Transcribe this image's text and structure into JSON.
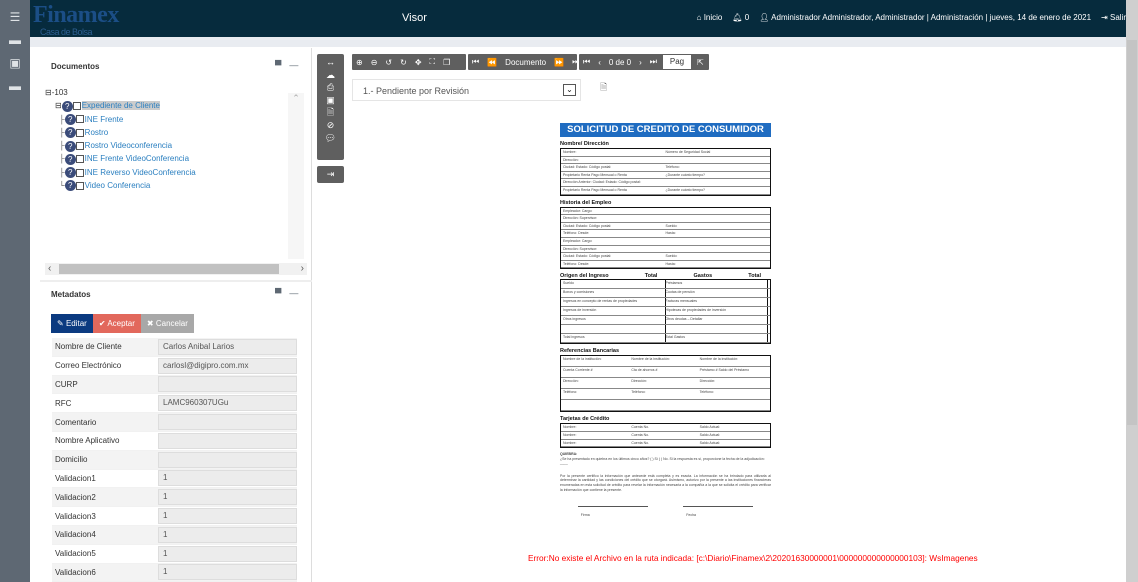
{
  "rail": {
    "items": [
      "menu-icon",
      "drawer-icon",
      "briefcase-icon",
      "inbox-icon"
    ]
  },
  "header": {
    "logo": "Finamex",
    "logo_sub": "Casa de Bolsa",
    "title": "Visor",
    "inicio": "Inicio",
    "notifications": "0",
    "user_info": "Administrador Administrador, Administrador | Administración | jueves, 14 de enero de 2021",
    "logout": "Salir"
  },
  "documents": {
    "title": "Documentos",
    "root": "103",
    "folder": "Expediente de Cliente",
    "items": [
      "INE Frente",
      "Rostro",
      "Rostro Videoconferencia",
      "INE Frente VideoConferencia",
      "INE Reverso VideoConferencia",
      "Video Conferencia"
    ]
  },
  "metadata": {
    "title": "Metadatos",
    "edit": "Editar",
    "accept": "Aceptar",
    "cancel": "Cancelar",
    "fields": [
      {
        "label": "Nombre de Cliente",
        "value": "Carlos Anibal Larios"
      },
      {
        "label": "Correo Electrónico",
        "value": "carlosl@digipro.com.mx"
      },
      {
        "label": "CURP",
        "value": ""
      },
      {
        "label": "RFC",
        "value": "LAMC960307UGu"
      },
      {
        "label": "Comentario",
        "value": ""
      },
      {
        "label": "Nombre Aplicativo",
        "value": ""
      },
      {
        "label": "Domicilio",
        "value": ""
      },
      {
        "label": "Validacion1",
        "value": "1"
      },
      {
        "label": "Validacion2",
        "value": "1"
      },
      {
        "label": "Validacion3",
        "value": "1"
      },
      {
        "label": "Validacion4",
        "value": "1"
      },
      {
        "label": "Validacion5",
        "value": "1"
      },
      {
        "label": "Validacion6",
        "value": "1"
      }
    ]
  },
  "viewer": {
    "doc_label": "Documento",
    "page_counter": "0 de 0",
    "page_input": "Pag",
    "status_select": "1.- Pendiente por Revisión",
    "error": "Error:No existe el Archivo en la ruta indicada: [c:\\Diario\\Finamex\\2\\20201630000001\\000000000000000103]: WsImagenes"
  },
  "document": {
    "title": "SOLICITUD DE CREDITO DE CONSUMIDOR",
    "s1": "Nombre/ Dirección",
    "s1_rows": [
      [
        "Nombre:",
        "Número de Seguridad Social"
      ],
      [
        "Dirección:",
        ""
      ],
      [
        "Ciudad:  Estado:  Código postal:",
        "Teléfono:"
      ],
      [
        "Propietario  Renta  Pago Mensual o Renta",
        "¿Durante cuánto tiempo?"
      ],
      [
        "Dirección Anterior:  Ciudad:  Estado:  Código postal:",
        ""
      ],
      [
        "Propietario  Renta  Pago Mensual o Renta",
        "¿Durante cuánto tiempo?"
      ]
    ],
    "s2": "Historia del Empleo",
    "s2_rows": [
      [
        "Empleador:  Cargo:",
        ""
      ],
      [
        "Dirección:  Supervisor:",
        ""
      ],
      [
        "Ciudad:  Estado:  Código postal:",
        "Sueldo:"
      ],
      [
        "Teléfono:  Desde:",
        "Hasta:"
      ],
      [
        "Empleador:  Cargo:",
        ""
      ],
      [
        "Dirección:  Supervisor:",
        ""
      ],
      [
        "Ciudad:  Estado:  Código postal:",
        "Sueldo:"
      ],
      [
        "Teléfono:  Desde:",
        "Hasta:"
      ]
    ],
    "s3": "Origen del Ingreso",
    "s3_total": "Total",
    "s3b": "Gastos",
    "s3b_total": "Total",
    "s3_rows": [
      [
        "Sueldo",
        "Préstamos"
      ],
      [
        "Bonos y comisiones",
        "Cuotas de pensión"
      ],
      [
        "Ingresos en concepto de rentas de propiedades",
        "Facturas mensuales"
      ],
      [
        "Ingresos de inversión",
        "Hipotecas de propiedades de inversión"
      ],
      [
        "Otros ingresos",
        "Otros deudas – Detallar"
      ],
      [
        "",
        ""
      ],
      [
        "Total ingresos",
        "Total Gastos"
      ]
    ],
    "s4": "Referencias Bancarias",
    "s4_rows": [
      [
        "Nombre de la institución:",
        "Nombre de la institución:",
        "Nombre de la institución:"
      ],
      [
        "Cuenta Corriente #",
        "Cta de ahorros #",
        "Préstamo #  Saldo del Préstamo"
      ],
      [
        "Dirección:",
        "Dirección:",
        "Dirección:"
      ],
      [
        "Teléfono:",
        "Teléfono:",
        "Teléfono:"
      ],
      [
        "",
        "",
        ""
      ]
    ],
    "s5": "Tarjetas de Crédito",
    "s5_rows": [
      [
        "Nombre:",
        "Cuenta No.",
        "Saldo Actual:"
      ],
      [
        "Nombre:",
        "Cuenta No.",
        "Saldo Actual:"
      ],
      [
        "Nombre:",
        "Cuenta No.",
        "Saldo Actual:"
      ]
    ],
    "quiebra": "QUIEBRA:",
    "quiebra_text": "¿Se ha presentado en quiebra en los últimos cinco años? (  ) Sí  (  ) No. Si la respuesta es sí, proporcione la fecha de la adjudicación: ____",
    "declaration": "Por la presente certifico la información que antecede está completa y es exacta. La información se ha brindado para utilizarla al determinar la cantidad y las condiciones del crédito que se otorgará. Asimismo, autorizo por la presente a las instituciones financieras enumeradas en esta solicitud de crédito para revelar la información necesaria a la compañía a la que se solicita el crédito para verificar la información que contiene la presente.",
    "firma": "Firma",
    "fecha": "Fecha"
  }
}
